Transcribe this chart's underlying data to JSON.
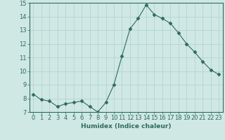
{
  "x": [
    0,
    1,
    2,
    3,
    4,
    5,
    6,
    7,
    8,
    9,
    10,
    11,
    12,
    13,
    14,
    15,
    16,
    17,
    18,
    19,
    20,
    21,
    22,
    23
  ],
  "y": [
    8.3,
    7.9,
    7.8,
    7.4,
    7.6,
    7.7,
    7.8,
    7.4,
    7.0,
    7.7,
    9.0,
    11.1,
    13.1,
    13.85,
    14.85,
    14.15,
    13.85,
    13.5,
    12.8,
    12.0,
    11.4,
    10.7,
    10.1,
    9.75
  ],
  "line_color": "#2e6b5e",
  "marker": "D",
  "marker_size": 2.5,
  "bg_color": "#cfe8e4",
  "grid_color": "#b0d0cc",
  "xlabel": "Humidex (Indice chaleur)",
  "xlim": [
    -0.5,
    23.5
  ],
  "ylim": [
    7,
    15
  ],
  "yticks": [
    7,
    8,
    9,
    10,
    11,
    12,
    13,
    14,
    15
  ],
  "xticks": [
    0,
    1,
    2,
    3,
    4,
    5,
    6,
    7,
    8,
    9,
    10,
    11,
    12,
    13,
    14,
    15,
    16,
    17,
    18,
    19,
    20,
    21,
    22,
    23
  ],
  "xlabel_fontsize": 6.5,
  "tick_fontsize": 6.0,
  "tick_color": "#2e6b5e",
  "spine_color": "#2e6b5e"
}
